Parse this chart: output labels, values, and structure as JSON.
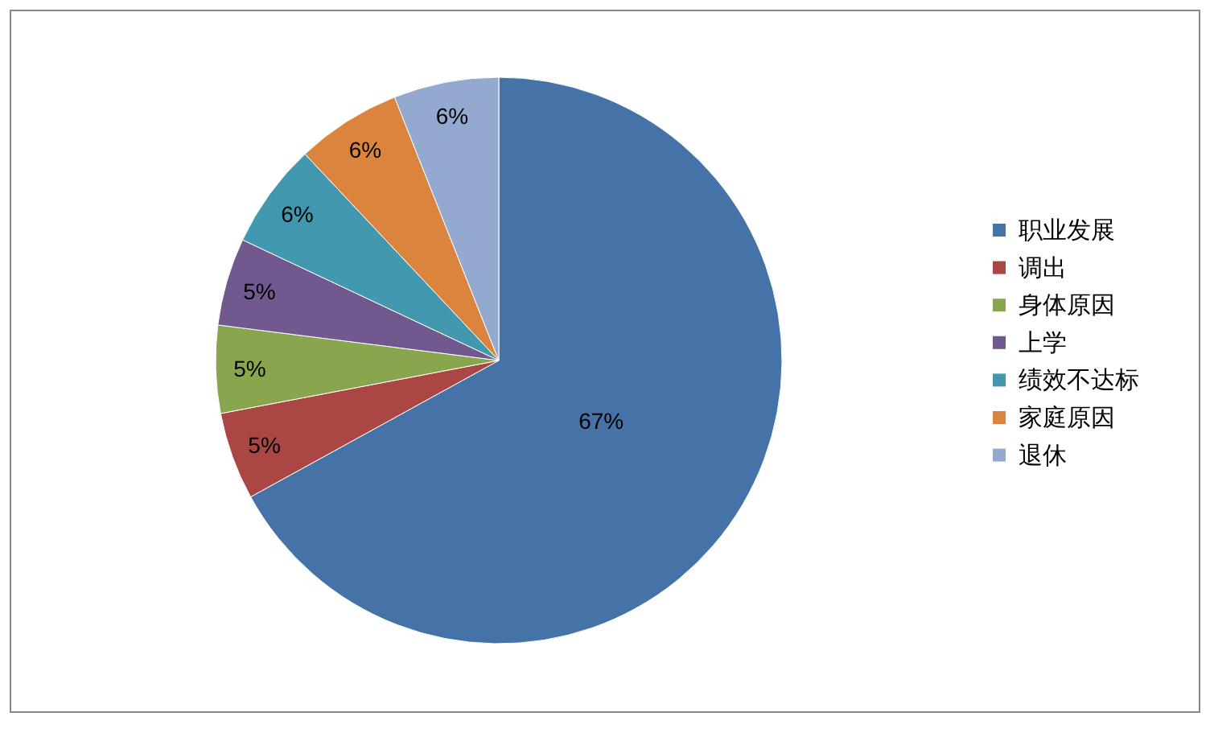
{
  "chart_data": {
    "type": "pie",
    "categories": [
      "职业发展",
      "调出",
      "身体原因",
      "上学",
      "绩效不达标",
      "家庭原因",
      "退休"
    ],
    "values": [
      67,
      5,
      5,
      5,
      6,
      6,
      6
    ],
    "colors": [
      "#4572a7",
      "#aa4643",
      "#89a54e",
      "#71588f",
      "#4198af",
      "#db843d",
      "#93a9cf"
    ],
    "value_labels": [
      "67%",
      "5%",
      "5%",
      "5%",
      "6%",
      "6%",
      "6%"
    ],
    "legend": "right"
  }
}
